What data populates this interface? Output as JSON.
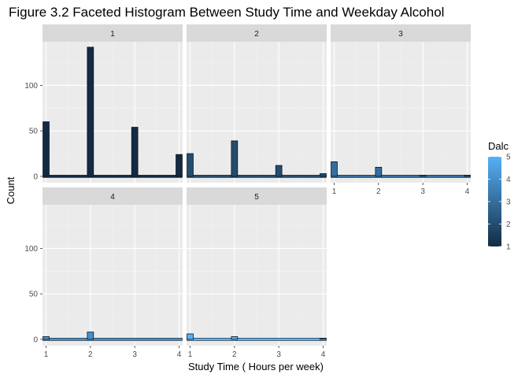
{
  "chart_data": {
    "type": "bar",
    "title": "Figure 3.2 Faceted Histogram Between Study Time and Weekday Alcohol",
    "xlabel": "Study Time ( Hours per week)",
    "ylabel": "Count",
    "x_ticks": [
      "1",
      "2",
      "3",
      "4"
    ],
    "y_ticks": [
      "0",
      "50",
      "100"
    ],
    "xlim": [
      0.92,
      4.08
    ],
    "ylim": [
      -7,
      148
    ],
    "facet_variable": "Dalc",
    "legend": {
      "title": "Dalc",
      "min": 1,
      "max": 5,
      "ticks": [
        "1",
        "2",
        "3",
        "4",
        "5"
      ],
      "low_color": "#132B43",
      "high_color": "#56B1F7",
      "position": "right"
    },
    "background": "#EBEBEB",
    "grid": true,
    "facets": [
      {
        "label": "1",
        "dalc": 1,
        "bars": [
          {
            "x": 1,
            "count": 60
          },
          {
            "x": 2,
            "count": 142
          },
          {
            "x": 3,
            "count": 54
          },
          {
            "x": 4,
            "count": 24
          }
        ]
      },
      {
        "label": "2",
        "dalc": 2,
        "bars": [
          {
            "x": 1,
            "count": 25
          },
          {
            "x": 2,
            "count": 39
          },
          {
            "x": 3,
            "count": 12
          },
          {
            "x": 4,
            "count": 3
          }
        ]
      },
      {
        "label": "3",
        "dalc": 3,
        "bars": [
          {
            "x": 1,
            "count": 16
          },
          {
            "x": 2,
            "count": 10
          },
          {
            "x": 3,
            "count": 1
          },
          {
            "x": 4,
            "count": 1
          }
        ]
      },
      {
        "label": "4",
        "dalc": 4,
        "bars": [
          {
            "x": 1,
            "count": 3
          },
          {
            "x": 2,
            "count": 8
          },
          {
            "x": 3,
            "count": 0
          },
          {
            "x": 4,
            "count": 0
          }
        ]
      },
      {
        "label": "5",
        "dalc": 5,
        "bars": [
          {
            "x": 1,
            "count": 6
          },
          {
            "x": 2,
            "count": 3
          },
          {
            "x": 3,
            "count": 0
          },
          {
            "x": 4,
            "count": 1
          }
        ]
      }
    ]
  }
}
